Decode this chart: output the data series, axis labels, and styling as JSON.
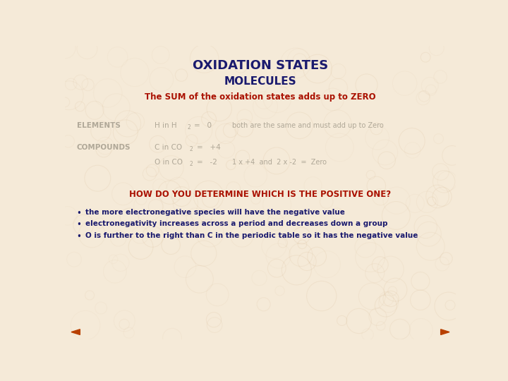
{
  "bg_color": "#f5ead8",
  "title": "OXIDATION STATES",
  "title_color": "#1a1a6e",
  "title_fontsize": 13,
  "subtitle": "MOLECULES",
  "subtitle_color": "#1a1a6e",
  "subtitle_fontsize": 11,
  "sum_line": "The SUM of the oxidation states adds up to ZERO",
  "sum_line_color": "#aa1100",
  "sum_line_fontsize": 8.5,
  "elements_label": "ELEMENTS",
  "label_color": "#b0a898",
  "label_fontsize": 7.5,
  "compounds_label": "COMPOUNDS",
  "how_line": "HOW DO YOU DETERMINE WHICH IS THE POSITIVE ONE?",
  "how_color": "#aa1100",
  "how_fontsize": 8.5,
  "bullets": [
    "the more electronegative species will have the negative value",
    "electronegativity increases across a period and decreases down a group",
    "O is further to the right than C in the periodic table so it has the negative value"
  ],
  "bullet_color": "#1a1a6e",
  "bullet_fontsize": 7.5,
  "arrow_color": "#b84000",
  "data_color": "#b0a898",
  "data_fontsize": 7.5
}
